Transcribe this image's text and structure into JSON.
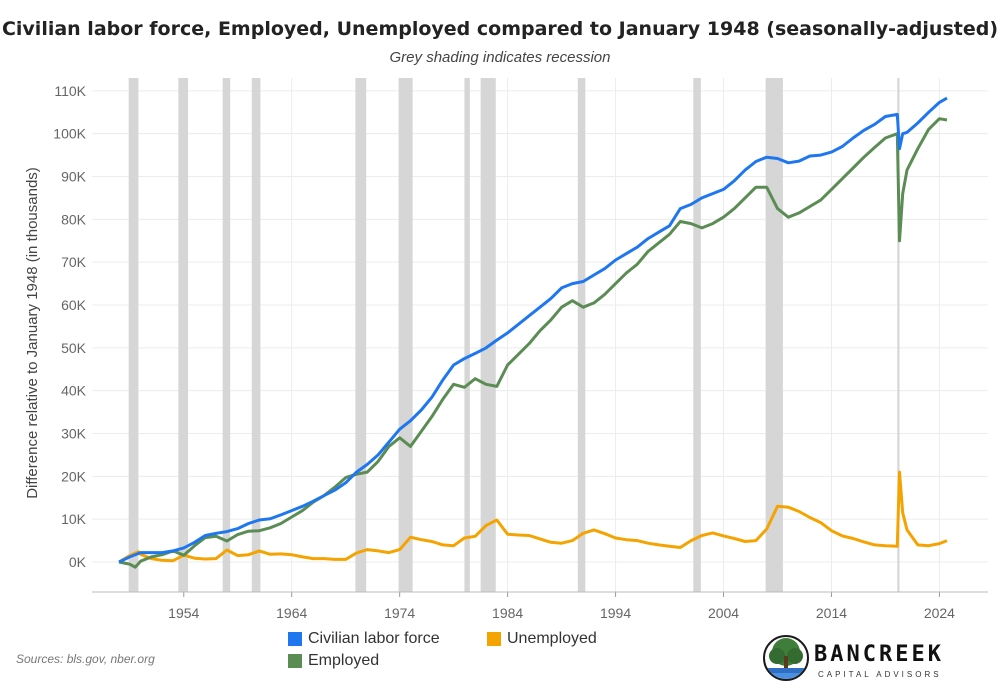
{
  "chart_data": {
    "type": "line",
    "title": "Civilian labor force, Employed, Unemployed compared to January 1948 (seasonally-adjusted)",
    "subtitle": "Grey shading indicates recession",
    "ylabel": "Difference relative to January 1948 (in thousands)",
    "xlabel": "",
    "xlim": [
      1945.5,
      2028.5
    ],
    "ylim": [
      -7000,
      113000
    ],
    "x_ticks": [
      1954,
      1964,
      1974,
      1984,
      1994,
      2004,
      2014,
      2024
    ],
    "y_ticks": [
      0,
      10000,
      20000,
      30000,
      40000,
      50000,
      60000,
      70000,
      80000,
      90000,
      100000,
      110000
    ],
    "y_tick_labels": [
      "0K",
      "10K",
      "20K",
      "30K",
      "40K",
      "50K",
      "60K",
      "70K",
      "80K",
      "90K",
      "100K",
      "110K"
    ],
    "recessions": [
      [
        1948.9,
        1949.8
      ],
      [
        1953.5,
        1954.4
      ],
      [
        1957.6,
        1958.3
      ],
      [
        1960.3,
        1961.1
      ],
      [
        1969.9,
        1970.9
      ],
      [
        1973.9,
        1975.2
      ],
      [
        1980.0,
        1980.5
      ],
      [
        1981.5,
        1982.9
      ],
      [
        1990.5,
        1991.2
      ],
      [
        2001.2,
        2001.9
      ],
      [
        2007.9,
        2009.5
      ],
      [
        2020.1,
        2020.3
      ]
    ],
    "legend_position": "bottom-center",
    "grid": true,
    "series": [
      {
        "name": "Civilian labor force",
        "color": "#1f77f0",
        "points": [
          [
            1948,
            0
          ],
          [
            1949,
            1200
          ],
          [
            1950,
            2200
          ],
          [
            1952,
            2200
          ],
          [
            1953,
            2600
          ],
          [
            1954,
            3300
          ],
          [
            1955,
            4600
          ],
          [
            1956,
            6200
          ],
          [
            1957,
            6700
          ],
          [
            1958,
            7100
          ],
          [
            1959,
            7800
          ],
          [
            1960,
            9000
          ],
          [
            1961,
            9800
          ],
          [
            1962,
            10100
          ],
          [
            1963,
            11000
          ],
          [
            1964,
            12000
          ],
          [
            1965,
            13000
          ],
          [
            1966,
            14200
          ],
          [
            1967,
            15500
          ],
          [
            1968,
            16800
          ],
          [
            1969,
            18500
          ],
          [
            1970,
            21000
          ],
          [
            1971,
            22800
          ],
          [
            1972,
            25000
          ],
          [
            1973,
            28000
          ],
          [
            1974,
            31000
          ],
          [
            1975,
            33000
          ],
          [
            1976,
            35500
          ],
          [
            1977,
            38500
          ],
          [
            1978,
            42500
          ],
          [
            1979,
            46000
          ],
          [
            1980,
            47500
          ],
          [
            1981,
            48700
          ],
          [
            1982,
            50000
          ],
          [
            1983,
            51800
          ],
          [
            1984,
            53500
          ],
          [
            1985,
            55500
          ],
          [
            1986,
            57500
          ],
          [
            1987,
            59500
          ],
          [
            1988,
            61500
          ],
          [
            1989,
            64000
          ],
          [
            1990,
            65000
          ],
          [
            1991,
            65500
          ],
          [
            1992,
            67000
          ],
          [
            1993,
            68500
          ],
          [
            1994,
            70500
          ],
          [
            1995,
            72000
          ],
          [
            1996,
            73500
          ],
          [
            1997,
            75500
          ],
          [
            1998,
            77000
          ],
          [
            1999,
            78500
          ],
          [
            2000,
            82500
          ],
          [
            2001,
            83500
          ],
          [
            2002,
            85000
          ],
          [
            2003,
            86000
          ],
          [
            2004,
            87000
          ],
          [
            2005,
            89000
          ],
          [
            2006,
            91500
          ],
          [
            2007,
            93500
          ],
          [
            2008,
            94500
          ],
          [
            2009,
            94200
          ],
          [
            2010,
            93200
          ],
          [
            2011,
            93600
          ],
          [
            2012,
            94800
          ],
          [
            2013,
            95000
          ],
          [
            2014,
            95700
          ],
          [
            2015,
            97000
          ],
          [
            2016,
            99000
          ],
          [
            2017,
            100800
          ],
          [
            2018,
            102200
          ],
          [
            2019,
            104000
          ],
          [
            2020.1,
            104500
          ],
          [
            2020.3,
            96500
          ],
          [
            2020.6,
            100000
          ],
          [
            2021,
            100300
          ],
          [
            2022,
            102500
          ],
          [
            2023,
            105000
          ],
          [
            2024,
            107300
          ],
          [
            2024.7,
            108300
          ]
        ]
      },
      {
        "name": "Employed",
        "color": "#5b8c54",
        "points": [
          [
            1948,
            0
          ],
          [
            1949,
            -500
          ],
          [
            1949.5,
            -1200
          ],
          [
            1950,
            200
          ],
          [
            1951,
            1200
          ],
          [
            1952,
            1700
          ],
          [
            1953,
            2600
          ],
          [
            1954,
            1600
          ],
          [
            1955,
            3800
          ],
          [
            1956,
            5700
          ],
          [
            1957,
            6000
          ],
          [
            1958,
            4900
          ],
          [
            1959,
            6400
          ],
          [
            1960,
            7200
          ],
          [
            1961,
            7300
          ],
          [
            1962,
            8000
          ],
          [
            1963,
            9000
          ],
          [
            1964,
            10500
          ],
          [
            1965,
            12000
          ],
          [
            1966,
            14000
          ],
          [
            1967,
            15500
          ],
          [
            1968,
            17500
          ],
          [
            1969,
            19700
          ],
          [
            1970,
            20500
          ],
          [
            1971,
            21000
          ],
          [
            1972,
            23500
          ],
          [
            1973,
            27000
          ],
          [
            1974,
            29000
          ],
          [
            1975,
            27000
          ],
          [
            1976,
            30500
          ],
          [
            1977,
            34000
          ],
          [
            1978,
            38000
          ],
          [
            1979,
            41500
          ],
          [
            1980,
            40800
          ],
          [
            1981,
            42800
          ],
          [
            1982,
            41500
          ],
          [
            1983,
            41000
          ],
          [
            1984,
            46000
          ],
          [
            1985,
            48500
          ],
          [
            1986,
            51000
          ],
          [
            1987,
            54000
          ],
          [
            1988,
            56500
          ],
          [
            1989,
            59500
          ],
          [
            1990,
            61000
          ],
          [
            1991,
            59500
          ],
          [
            1992,
            60500
          ],
          [
            1993,
            62500
          ],
          [
            1994,
            65000
          ],
          [
            1995,
            67500
          ],
          [
            1996,
            69500
          ],
          [
            1997,
            72500
          ],
          [
            1998,
            74500
          ],
          [
            1999,
            76500
          ],
          [
            2000,
            79500
          ],
          [
            2001,
            79000
          ],
          [
            2002,
            78000
          ],
          [
            2003,
            79000
          ],
          [
            2004,
            80500
          ],
          [
            2005,
            82500
          ],
          [
            2006,
            85000
          ],
          [
            2007,
            87500
          ],
          [
            2008,
            87500
          ],
          [
            2009,
            82500
          ],
          [
            2010,
            80500
          ],
          [
            2011,
            81500
          ],
          [
            2012,
            83000
          ],
          [
            2013,
            84500
          ],
          [
            2014,
            87000
          ],
          [
            2015,
            89500
          ],
          [
            2016,
            92000
          ],
          [
            2017,
            94500
          ],
          [
            2018,
            96800
          ],
          [
            2019,
            99000
          ],
          [
            2020.1,
            100000
          ],
          [
            2020.3,
            75000
          ],
          [
            2020.6,
            86000
          ],
          [
            2021,
            91500
          ],
          [
            2022,
            96500
          ],
          [
            2023,
            101000
          ],
          [
            2024,
            103500
          ],
          [
            2024.7,
            103200
          ]
        ]
      },
      {
        "name": "Unemployed",
        "color": "#f5a300",
        "points": [
          [
            1948,
            0
          ],
          [
            1949,
            1500
          ],
          [
            1949.8,
            2400
          ],
          [
            1950,
            1800
          ],
          [
            1951,
            800
          ],
          [
            1952,
            400
          ],
          [
            1953,
            300
          ],
          [
            1954,
            1600
          ],
          [
            1955,
            900
          ],
          [
            1956,
            700
          ],
          [
            1957,
            800
          ],
          [
            1958,
            2800
          ],
          [
            1959,
            1500
          ],
          [
            1960,
            1700
          ],
          [
            1961,
            2600
          ],
          [
            1962,
            1800
          ],
          [
            1963,
            1900
          ],
          [
            1964,
            1700
          ],
          [
            1965,
            1200
          ],
          [
            1966,
            800
          ],
          [
            1967,
            800
          ],
          [
            1968,
            600
          ],
          [
            1969,
            600
          ],
          [
            1970,
            2100
          ],
          [
            1971,
            2900
          ],
          [
            1972,
            2600
          ],
          [
            1973,
            2200
          ],
          [
            1974,
            2900
          ],
          [
            1975,
            5800
          ],
          [
            1976,
            5200
          ],
          [
            1977,
            4800
          ],
          [
            1978,
            4000
          ],
          [
            1979,
            3800
          ],
          [
            1980,
            5600
          ],
          [
            1981,
            6000
          ],
          [
            1982,
            8500
          ],
          [
            1983,
            9800
          ],
          [
            1984,
            6500
          ],
          [
            1985,
            6300
          ],
          [
            1986,
            6200
          ],
          [
            1987,
            5400
          ],
          [
            1988,
            4600
          ],
          [
            1989,
            4400
          ],
          [
            1990,
            5000
          ],
          [
            1991,
            6700
          ],
          [
            1992,
            7500
          ],
          [
            1993,
            6600
          ],
          [
            1994,
            5600
          ],
          [
            1995,
            5200
          ],
          [
            1996,
            5000
          ],
          [
            1997,
            4400
          ],
          [
            1998,
            4000
          ],
          [
            1999,
            3700
          ],
          [
            2000,
            3400
          ],
          [
            2001,
            5000
          ],
          [
            2002,
            6200
          ],
          [
            2003,
            6800
          ],
          [
            2004,
            6100
          ],
          [
            2005,
            5500
          ],
          [
            2006,
            4800
          ],
          [
            2007,
            5000
          ],
          [
            2008,
            7700
          ],
          [
            2009,
            13000
          ],
          [
            2010,
            12800
          ],
          [
            2011,
            11800
          ],
          [
            2012,
            10400
          ],
          [
            2013,
            9200
          ],
          [
            2014,
            7300
          ],
          [
            2015,
            6100
          ],
          [
            2016,
            5500
          ],
          [
            2017,
            4700
          ],
          [
            2018,
            4000
          ],
          [
            2019,
            3800
          ],
          [
            2020.1,
            3700
          ],
          [
            2020.3,
            21000
          ],
          [
            2020.6,
            11500
          ],
          [
            2021,
            7500
          ],
          [
            2022,
            4000
          ],
          [
            2023,
            3800
          ],
          [
            2024,
            4300
          ],
          [
            2024.7,
            5000
          ]
        ]
      }
    ]
  },
  "footer": {
    "sources": "Sources: bls.gov, nber.org"
  },
  "logo": {
    "name": "BANCREEK",
    "tagline": "CAPITAL ADVISORS"
  }
}
